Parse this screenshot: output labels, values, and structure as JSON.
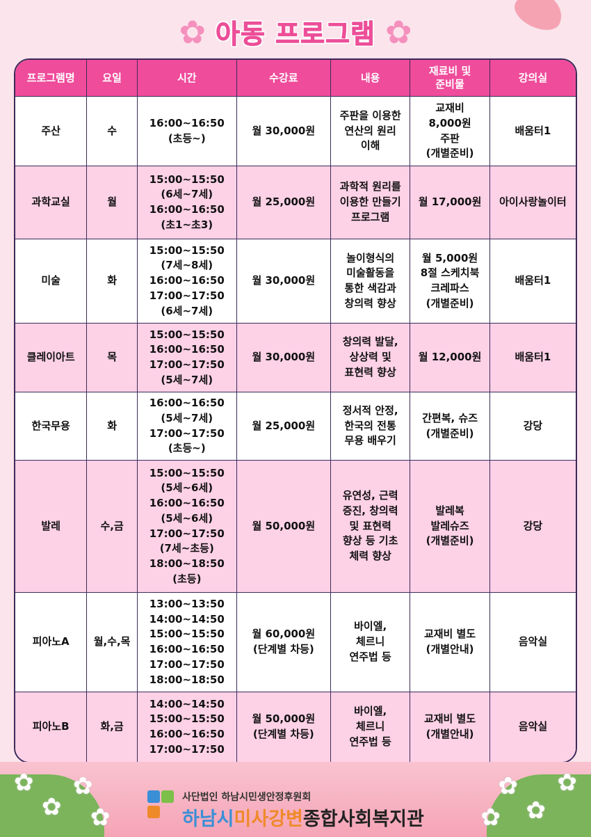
{
  "title": "아동 프로그램",
  "table": {
    "headers": [
      "프로그램명",
      "요일",
      "시간",
      "수강료",
      "내용",
      "재료비 및\n준비물",
      "강의실"
    ],
    "rows": [
      [
        "주산",
        "수",
        "16:00~16:50\n(초등~)",
        "월 30,000원",
        "주판을 이용한\n연산의 원리\n이해",
        "교재비\n8,000원\n주판\n(개별준비)",
        "배움터1"
      ],
      [
        "과학교실",
        "월",
        "15:00~15:50\n(6세~7세)\n16:00~16:50\n(초1~초3)",
        "월 25,000원",
        "과학적 원리를\n이용한 만들기\n프로그램",
        "월 17,000원",
        "아이사랑놀이터"
      ],
      [
        "미술",
        "화",
        "15:00~15:50\n(7세~8세)\n16:00~16:50\n17:00~17:50\n(6세~7세)",
        "월 30,000원",
        "놀이형식의\n미술활동을\n통한 색감과\n창의력 향상",
        "월 5,000원\n8절 스케치북\n크레파스\n(개별준비)",
        "배움터1"
      ],
      [
        "클레이아트",
        "목",
        "15:00~15:50\n16:00~16:50\n17:00~17:50\n(5세~7세)",
        "월 30,000원",
        "창의력 발달,\n상상력 및\n표현력 향상",
        "월 12,000원",
        "배움터1"
      ],
      [
        "한국무용",
        "화",
        "16:00~16:50\n(5세~7세)\n17:00~17:50\n(초등~)",
        "월 25,000원",
        "정서적 안정,\n한국의 전통\n무용 배우기",
        "간편복, 슈즈\n(개별준비)",
        "강당"
      ],
      [
        "발레",
        "수,금",
        "15:00~15:50\n(5세~6세)\n16:00~16:50\n(5세~6세)\n17:00~17:50\n(7세~초등)\n18:00~18:50\n(초등)",
        "월 50,000원",
        "유연성, 근력\n증진, 창의력\n및 표현력\n향상 등 기초\n체력 향상",
        "발레복\n발레슈즈\n(개별준비)",
        "강당"
      ],
      [
        "피아노A",
        "월,수,목",
        "13:00~13:50\n14:00~14:50\n15:00~15:50\n16:00~16:50\n17:00~17:50\n18:00~18:50",
        "월 60,000원\n(단계별 차등)",
        "바이엘,\n체르니\n연주법 등",
        "교재비 별도\n(개별안내)",
        "음악실"
      ],
      [
        "피아노B",
        "화,금",
        "14:00~14:50\n15:00~15:50\n16:00~16:50\n17:00~17:50",
        "월 50,000원\n(단계별 차등)",
        "바이엘,\n체르니\n연주법 등",
        "교재비 별도\n(개별안내)",
        "음악실"
      ]
    ]
  },
  "footer": {
    "org_sub": "사단법인 하남시민생안정후원회",
    "org_part1": "하남시",
    "org_part2": "미사강변",
    "org_part3": "종합사회복지관"
  },
  "colors": {
    "header": "#ef4c9b",
    "pink_row": "#fdd1e6",
    "title": "#ec4e98"
  }
}
